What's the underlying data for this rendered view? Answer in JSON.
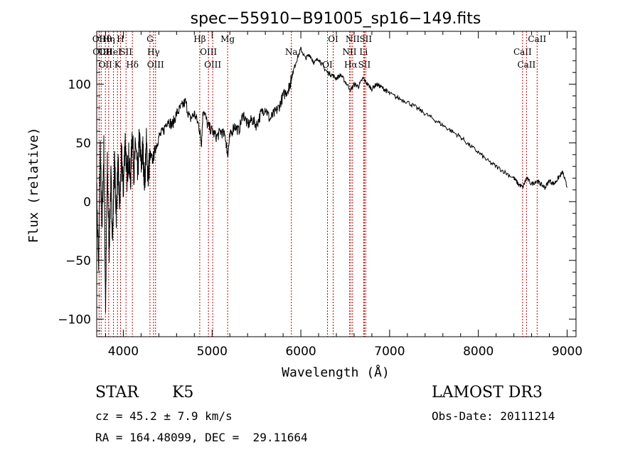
{
  "chart_data": {
    "type": "line",
    "title": "spec−55910−B91005_sp16−149.fits",
    "xlabel": "Wavelength (Å)",
    "ylabel": "Flux (relative)",
    "xlim": [
      3700,
      9100
    ],
    "ylim": [
      -115,
      145
    ],
    "xticks": [
      4000,
      5000,
      6000,
      7000,
      8000,
      9000
    ],
    "xtick_labels": [
      "4000",
      "5000",
      "6000",
      "7000",
      "8000",
      "9000"
    ],
    "yticks": [
      -100,
      -50,
      0,
      50,
      100
    ],
    "ytick_labels": [
      "−100",
      "−50",
      "0",
      "50",
      "100"
    ],
    "series": [
      {
        "name": "flux",
        "color": "#000000",
        "x": [
          3700,
          3720,
          3740,
          3760,
          3780,
          3800,
          3820,
          3840,
          3860,
          3880,
          3900,
          3920,
          3940,
          3960,
          3980,
          4000,
          4020,
          4040,
          4060,
          4080,
          4100,
          4120,
          4140,
          4160,
          4180,
          4200,
          4220,
          4240,
          4260,
          4280,
          4300,
          4330,
          4360,
          4400,
          4450,
          4500,
          4550,
          4600,
          4650,
          4700,
          4750,
          4800,
          4850,
          4880,
          4900,
          4950,
          5000,
          5050,
          5100,
          5150,
          5175,
          5200,
          5250,
          5300,
          5350,
          5400,
          5450,
          5500,
          5550,
          5600,
          5650,
          5700,
          5750,
          5800,
          5850,
          5880,
          5893,
          5910,
          5950,
          6000,
          6050,
          6100,
          6150,
          6200,
          6250,
          6300,
          6350,
          6400,
          6450,
          6500,
          6563,
          6600,
          6650,
          6700,
          6750,
          6800,
          6850,
          6900,
          6950,
          7000,
          7100,
          7200,
          7300,
          7400,
          7500,
          7600,
          7700,
          7800,
          7900,
          8000,
          8100,
          8200,
          8300,
          8400,
          8450,
          8500,
          8542,
          8600,
          8662,
          8700,
          8750,
          8800,
          8850,
          8900,
          8950,
          9000
        ],
        "y": [
          10,
          -60,
          40,
          -20,
          45,
          -90,
          30,
          -40,
          20,
          -30,
          35,
          -10,
          30,
          -5,
          40,
          10,
          55,
          20,
          40,
          15,
          60,
          25,
          50,
          20,
          55,
          30,
          45,
          15,
          50,
          20,
          40,
          35,
          45,
          55,
          60,
          70,
          65,
          75,
          80,
          85,
          70,
          75,
          65,
          50,
          80,
          65,
          60,
          55,
          60,
          55,
          40,
          55,
          65,
          60,
          75,
          65,
          70,
          65,
          75,
          80,
          70,
          75,
          80,
          90,
          95,
          100,
          105,
          110,
          120,
          130,
          122,
          125,
          118,
          122,
          115,
          110,
          108,
          105,
          108,
          102,
          95,
          100,
          98,
          105,
          100,
          96,
          100,
          98,
          95,
          92,
          88,
          85,
          80,
          75,
          70,
          65,
          60,
          55,
          48,
          42,
          35,
          30,
          25,
          20,
          15,
          12,
          20,
          15,
          18,
          15,
          12,
          18,
          15,
          20,
          25,
          12
        ]
      }
    ],
    "lines": [
      {
        "w": 3727,
        "labels": [
          "OII"
        ]
      },
      {
        "w": 3750,
        "labels": [
          "OIII"
        ]
      },
      {
        "w": 3798,
        "labels": [
          "Hθ",
          "OII",
          "OII"
        ]
      },
      {
        "w": 3835,
        "labels": [
          "Hη"
        ]
      },
      {
        "w": 3889,
        "labels": [
          "HeI"
        ]
      },
      {
        "w": 3934,
        "labels": [
          "K"
        ]
      },
      {
        "w": 3968,
        "labels": [
          "H"
        ]
      },
      {
        "w": 4030,
        "labels": [
          "SII"
        ]
      },
      {
        "w": 4102,
        "labels": [
          "Hδ"
        ]
      },
      {
        "w": 4300,
        "labels": [
          "G"
        ]
      },
      {
        "w": 4340,
        "labels": [
          "Hγ"
        ]
      },
      {
        "w": 4363,
        "labels": [
          "OIII"
        ]
      },
      {
        "w": 4861,
        "labels": [
          "Hβ"
        ]
      },
      {
        "w": 4959,
        "labels": [
          "OIII"
        ]
      },
      {
        "w": 5007,
        "labels": [
          "OIII"
        ]
      },
      {
        "w": 5175,
        "labels": [
          "Mg"
        ]
      },
      {
        "w": 5893,
        "labels": [
          "Na"
        ]
      },
      {
        "w": 6300,
        "labels": [
          "OI"
        ]
      },
      {
        "w": 6364,
        "labels": [
          "OI"
        ]
      },
      {
        "w": 6548,
        "labels": [
          "NII"
        ]
      },
      {
        "w": 6563,
        "labels": [
          "Hα"
        ]
      },
      {
        "w": 6583,
        "labels": [
          "NII"
        ]
      },
      {
        "w": 6707,
        "labels": [
          "Li"
        ]
      },
      {
        "w": 6716,
        "labels": [
          "SII"
        ]
      },
      {
        "w": 6731,
        "labels": [
          "SII"
        ]
      },
      {
        "w": 8498,
        "labels": [
          "CaII"
        ]
      },
      {
        "w": 8542,
        "labels": [
          "CaII"
        ]
      },
      {
        "w": 8662,
        "labels": [
          "CaII"
        ]
      }
    ],
    "line_color": "#c00000"
  },
  "info": {
    "class": "STAR",
    "subclass": "K5",
    "survey": "LAMOST DR3",
    "cz": "cz = 45.2 ± 7.9 km/s",
    "obs_date": "Obs-Date: 20111214",
    "coords": "RA = 164.48099, DEC =  29.11664"
  }
}
